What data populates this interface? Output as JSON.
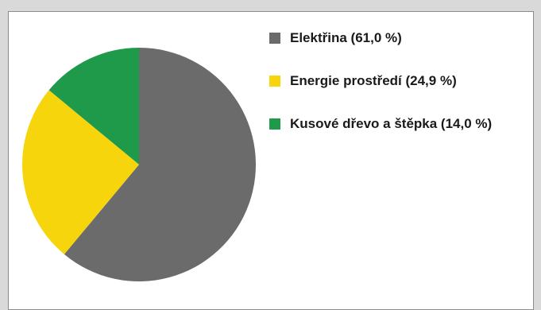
{
  "chart_data": {
    "type": "pie",
    "slices": [
      {
        "label": "Elektřina (61,0 %)",
        "value": 61.0,
        "color": "#6b6b6b"
      },
      {
        "label": "Energie prostředí (24,9 %)",
        "value": 24.9,
        "color": "#f7d50c"
      },
      {
        "label": "Kusové dřevo a štěpka (14,0 %)",
        "value": 14.0,
        "color": "#1f9a4a"
      }
    ],
    "start_angle_deg": 0,
    "direction": "clockwise",
    "legend_position": "right"
  }
}
